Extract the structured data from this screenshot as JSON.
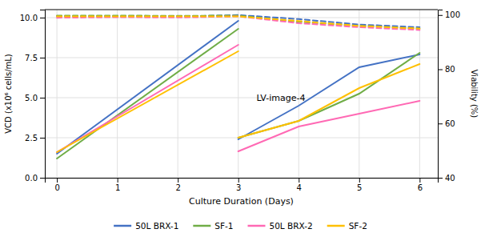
{
  "chart_data": {
    "type": "line",
    "x_label": "Culture Duration (Days)",
    "y_label": "VCD (x10⁶ cells/mL)",
    "y2_label": "Viability (%)",
    "xlim": [
      -0.2,
      6.3
    ],
    "xticks": [
      0,
      1,
      2,
      3,
      4,
      5,
      6
    ],
    "ylim": [
      0,
      10.5
    ],
    "yticks": [
      {
        "value": 0.0,
        "label": "0.0"
      },
      2.5,
      {
        "value": 5.0,
        "label": "5.0"
      },
      7.5,
      {
        "value": 10.0,
        "label": "10.0"
      }
    ],
    "y2lim": [
      40.0,
      102.0
    ],
    "y2ticks": [
      40,
      60,
      80,
      100
    ],
    "grid": true,
    "legend": "bottom",
    "annotations": [
      {
        "text": "LV-image-4",
        "x": 3.3,
        "y": 4.8
      }
    ],
    "series": [
      {
        "name": "50L BRX-1",
        "color": "#4472C4",
        "line_style": "solid",
        "x": [
          0,
          3,
          null,
          3,
          4,
          5,
          6
        ],
        "values": [
          1.5,
          9.8,
          null,
          2.4,
          4.5,
          6.9,
          7.7
        ]
      },
      {
        "name": "SF-1",
        "color": "#70AD47",
        "line_style": "solid",
        "x": [
          0,
          3,
          null,
          3,
          4,
          5,
          6
        ],
        "values": [
          1.2,
          9.3,
          null,
          2.5,
          3.55,
          5.25,
          7.8
        ]
      },
      {
        "name": "50L BRX-2",
        "color": "#FF69B4",
        "line_style": "solid",
        "x": [
          0,
          3,
          null,
          3,
          4,
          5,
          6
        ],
        "values": [
          1.6,
          8.3,
          null,
          1.65,
          3.2,
          4.0,
          4.8
        ]
      },
      {
        "name": "SF-2",
        "color": "#FFC000",
        "line_style": "solid",
        "x": [
          0,
          3,
          null,
          3,
          4,
          5,
          6
        ],
        "values": [
          1.6,
          7.9,
          null,
          2.5,
          3.55,
          5.6,
          7.1
        ]
      },
      {
        "name": "50L BRX-1",
        "color": "#4472C4",
        "line_style": "dashed",
        "axis": "y2",
        "x": [
          0,
          1,
          2,
          3,
          4,
          5,
          6
        ],
        "values": [
          99.5,
          99.5,
          99.4,
          100.0,
          98.5,
          96.5,
          95.5
        ]
      },
      {
        "name": "SF-1",
        "color": "#70AD47",
        "line_style": "dashed",
        "axis": "y2",
        "x": [
          0,
          1,
          2,
          3,
          4,
          5,
          6
        ],
        "values": [
          99.8,
          99.8,
          99.7,
          99.8,
          97.5,
          96.0,
          95.0
        ]
      },
      {
        "name": "50L BRX-2",
        "color": "#FF69B4",
        "line_style": "dashed",
        "axis": "y2",
        "x": [
          0,
          1,
          2,
          3,
          4,
          5,
          6
        ],
        "values": [
          99.0,
          99.2,
          99.1,
          99.5,
          97.0,
          95.5,
          94.5
        ]
      },
      {
        "name": "SF-2",
        "color": "#FFC000",
        "line_style": "dashed",
        "axis": "y2",
        "x": [
          0,
          1,
          2,
          3,
          4,
          5,
          6
        ],
        "values": [
          99.5,
          99.5,
          99.5,
          99.5,
          97.8,
          96.0,
          95.0
        ]
      }
    ]
  }
}
